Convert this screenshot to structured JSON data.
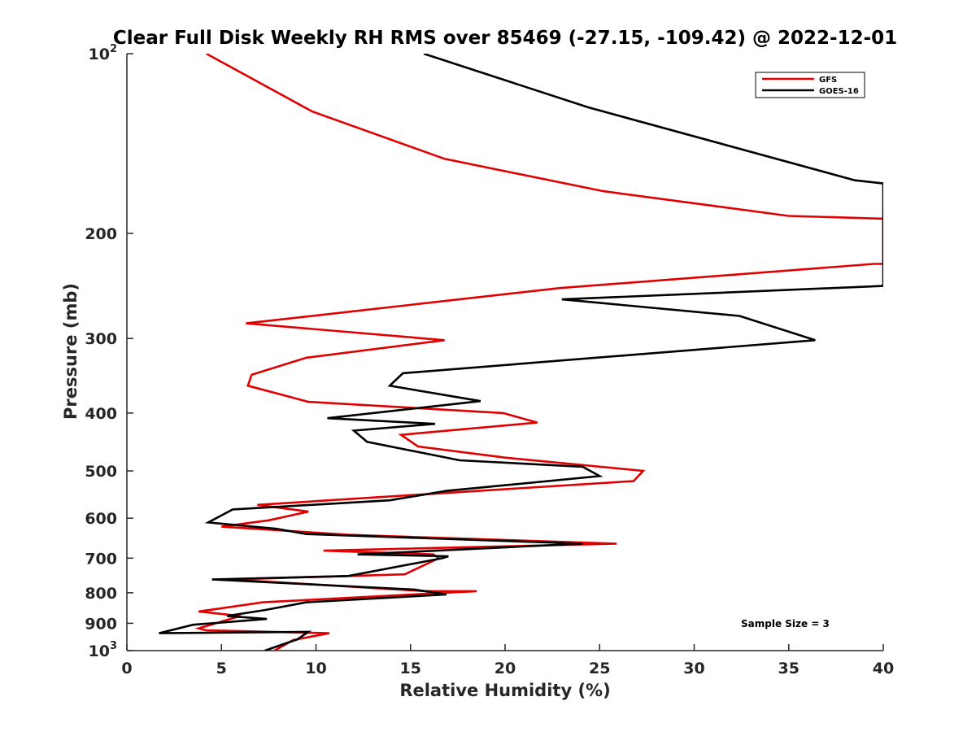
{
  "chart_data": {
    "type": "line",
    "title": "Clear Full Disk Weekly RH RMS over 85469 (-27.15, -109.42) @ 2022-12-01",
    "xlabel": "Relative Humidity (%)",
    "ylabel": "Pressure (mb)",
    "xlim": [
      0,
      40
    ],
    "ylim": [
      100,
      1000
    ],
    "y_scale": "log",
    "y_reversed": true,
    "grid": false,
    "legend_position": "top-right",
    "x_ticks": [
      "0",
      "5",
      "10",
      "15",
      "20",
      "25",
      "30",
      "35",
      "40"
    ],
    "y_ticks": [
      {
        "value": 100,
        "base": "10",
        "exp": "2"
      },
      {
        "value": 200,
        "label": "200"
      },
      {
        "value": 300,
        "label": "300"
      },
      {
        "value": 400,
        "label": "400"
      },
      {
        "value": 500,
        "label": "500"
      },
      {
        "value": 600,
        "label": "600"
      },
      {
        "value": 700,
        "label": "700"
      },
      {
        "value": 800,
        "label": "800"
      },
      {
        "value": 900,
        "label": "900"
      },
      {
        "value": 1000,
        "base": "10",
        "exp": "3"
      }
    ],
    "annotation": "Sample Size = 3",
    "series": [
      {
        "name": "GFS",
        "color": "#e00000",
        "points": [
          [
            4.2,
            100
          ],
          [
            9.8,
            125
          ],
          [
            16.8,
            150
          ],
          [
            25.2,
            170
          ],
          [
            35.0,
            187
          ],
          [
            40.0,
            189
          ],
          [
            40.0,
            225
          ],
          [
            39.5,
            225
          ],
          [
            22.9,
            247
          ],
          [
            6.3,
            283
          ],
          [
            16.8,
            302
          ],
          [
            9.5,
            323
          ],
          [
            6.6,
            345
          ],
          [
            6.4,
            360
          ],
          [
            9.6,
            383
          ],
          [
            19.9,
            400
          ],
          [
            21.7,
            415
          ],
          [
            14.5,
            435
          ],
          [
            15.4,
            455
          ],
          [
            20.0,
            475
          ],
          [
            27.3,
            500
          ],
          [
            26.8,
            520
          ],
          [
            6.9,
            570
          ],
          [
            9.6,
            585
          ],
          [
            7.5,
            605
          ],
          [
            5.0,
            620
          ],
          [
            11.8,
            640
          ],
          [
            25.9,
            662
          ],
          [
            10.4,
            680
          ],
          [
            16.2,
            690
          ],
          [
            16.5,
            700
          ],
          [
            14.7,
            745
          ],
          [
            5.5,
            760
          ],
          [
            15.8,
            795
          ],
          [
            18.5,
            795
          ],
          [
            7.2,
            830
          ],
          [
            3.8,
            860
          ],
          [
            6.0,
            875
          ],
          [
            3.8,
            918
          ],
          [
            4.2,
            925
          ],
          [
            10.7,
            935
          ],
          [
            8.8,
            960
          ],
          [
            7.8,
            1000
          ]
        ]
      },
      {
        "name": "GOES-16",
        "color": "#000000",
        "points": [
          [
            15.7,
            100
          ],
          [
            24.4,
            123
          ],
          [
            38.5,
            163
          ],
          [
            40.0,
            165
          ],
          [
            40.0,
            245
          ],
          [
            23.0,
            258
          ],
          [
            32.4,
            275
          ],
          [
            36.4,
            302
          ],
          [
            14.6,
            343
          ],
          [
            13.9,
            360
          ],
          [
            18.7,
            382
          ],
          [
            10.6,
            408
          ],
          [
            16.3,
            417
          ],
          [
            12.0,
            428
          ],
          [
            12.7,
            447
          ],
          [
            17.6,
            480
          ],
          [
            24.1,
            492
          ],
          [
            25.0,
            510
          ],
          [
            16.9,
            540
          ],
          [
            13.9,
            560
          ],
          [
            5.6,
            580
          ],
          [
            4.3,
            610
          ],
          [
            7.9,
            625
          ],
          [
            9.5,
            638
          ],
          [
            24.1,
            662
          ],
          [
            12.2,
            690
          ],
          [
            17.0,
            695
          ],
          [
            16.7,
            700
          ],
          [
            11.7,
            750
          ],
          [
            4.5,
            760
          ],
          [
            15.2,
            790
          ],
          [
            16.9,
            805
          ],
          [
            9.5,
            830
          ],
          [
            7.3,
            855
          ],
          [
            5.3,
            875
          ],
          [
            7.4,
            885
          ],
          [
            3.5,
            905
          ],
          [
            1.7,
            935
          ],
          [
            9.6,
            930
          ],
          [
            9.0,
            958
          ],
          [
            8.3,
            975
          ],
          [
            7.3,
            1000
          ]
        ]
      }
    ]
  }
}
